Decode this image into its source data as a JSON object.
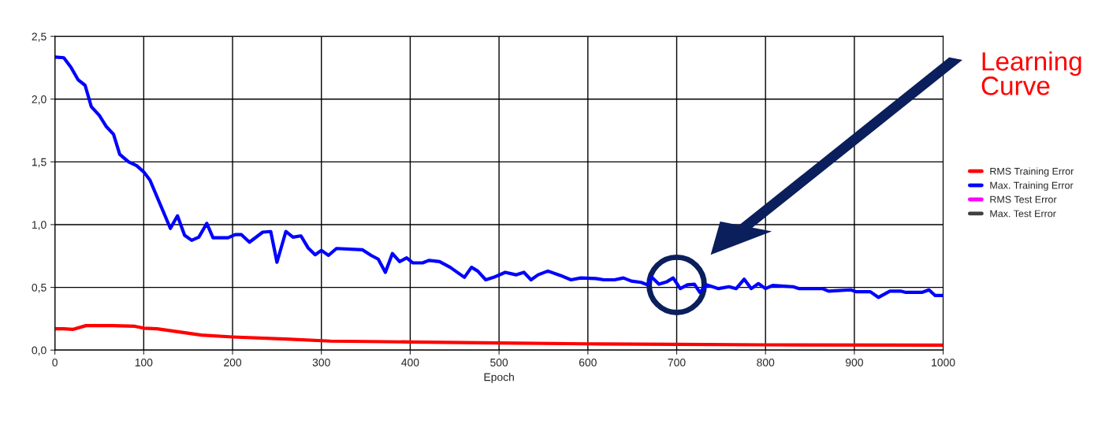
{
  "chart_data": {
    "type": "line",
    "xlabel": "Epoch",
    "annotations": [
      "Learning Curve"
    ],
    "xlim": [
      0,
      1000
    ],
    "xticks": [
      0,
      100,
      200,
      300,
      400,
      500,
      600,
      700,
      800,
      900,
      1000
    ],
    "ylim": [
      0,
      2.5
    ],
    "yticks": [
      {
        "value": 0,
        "label": "0,0"
      },
      {
        "value": 0.5,
        "label": "0,5"
      },
      {
        "value": 1,
        "label": "1,0"
      },
      {
        "value": 1.5,
        "label": "1,5"
      },
      {
        "value": 2,
        "label": "2,0"
      },
      {
        "value": 2.5,
        "label": "2,5"
      }
    ],
    "grid": true,
    "legend": "right",
    "marker": "none",
    "line_style": "solid",
    "series": [
      {
        "name": "RMS Training Error",
        "color": "#ff0000",
        "x": [
          0,
          10,
          20,
          35,
          65,
          90,
          100,
          115,
          140,
          165,
          200,
          260,
          310,
          400,
          500,
          600,
          700,
          800,
          1000
        ],
        "values": [
          0.17,
          0.17,
          0.165,
          0.195,
          0.195,
          0.19,
          0.175,
          0.17,
          0.145,
          0.12,
          0.105,
          0.088,
          0.072,
          0.065,
          0.057,
          0.05,
          0.046,
          0.042,
          0.04
        ]
      },
      {
        "name": "Max. Training Error",
        "color": "#0000ff",
        "x": [
          0,
          10,
          18,
          26,
          34,
          41,
          50,
          58,
          66,
          73,
          83,
          92,
          100,
          107,
          130,
          138,
          146,
          154,
          162,
          171,
          178,
          195,
          203,
          210,
          219,
          234,
          243,
          250,
          260,
          268,
          277,
          285,
          293,
          300,
          308,
          317,
          346,
          356,
          364,
          372,
          380,
          388,
          396,
          403,
          414,
          421,
          433,
          445,
          461,
          469,
          476,
          485,
          494,
          507,
          519,
          528,
          536,
          544,
          555,
          569,
          581,
          592,
          609,
          618,
          630,
          640,
          649,
          660,
          667,
          672,
          680,
          689,
          696,
          704,
          712,
          720,
          726,
          734,
          747,
          759,
          767,
          776,
          784,
          792,
          800,
          808,
          831,
          838,
          864,
          871,
          896,
          902,
          918,
          927,
          940,
          952,
          958,
          976,
          984,
          991,
          1000
        ],
        "values": [
          2.335,
          2.33,
          2.255,
          2.155,
          2.11,
          1.94,
          1.87,
          1.78,
          1.72,
          1.56,
          1.5,
          1.47,
          1.42,
          1.355,
          0.97,
          1.07,
          0.915,
          0.875,
          0.9,
          1.01,
          0.895,
          0.895,
          0.92,
          0.92,
          0.86,
          0.94,
          0.945,
          0.7,
          0.945,
          0.9,
          0.91,
          0.815,
          0.76,
          0.795,
          0.755,
          0.81,
          0.8,
          0.755,
          0.725,
          0.62,
          0.77,
          0.705,
          0.735,
          0.695,
          0.695,
          0.715,
          0.705,
          0.66,
          0.58,
          0.66,
          0.63,
          0.56,
          0.58,
          0.62,
          0.6,
          0.62,
          0.56,
          0.6,
          0.63,
          0.595,
          0.56,
          0.575,
          0.57,
          0.56,
          0.56,
          0.575,
          0.55,
          0.54,
          0.52,
          0.58,
          0.525,
          0.545,
          0.575,
          0.49,
          0.52,
          0.525,
          0.46,
          0.52,
          0.49,
          0.505,
          0.49,
          0.565,
          0.49,
          0.53,
          0.49,
          0.515,
          0.505,
          0.49,
          0.49,
          0.47,
          0.48,
          0.465,
          0.465,
          0.42,
          0.47,
          0.47,
          0.46,
          0.46,
          0.48,
          0.435,
          0.435
        ]
      },
      {
        "name": "RMS Test Error",
        "color": "#ff00ff"
      },
      {
        "name": "Max. Test Error",
        "color": "#404040"
      }
    ]
  }
}
